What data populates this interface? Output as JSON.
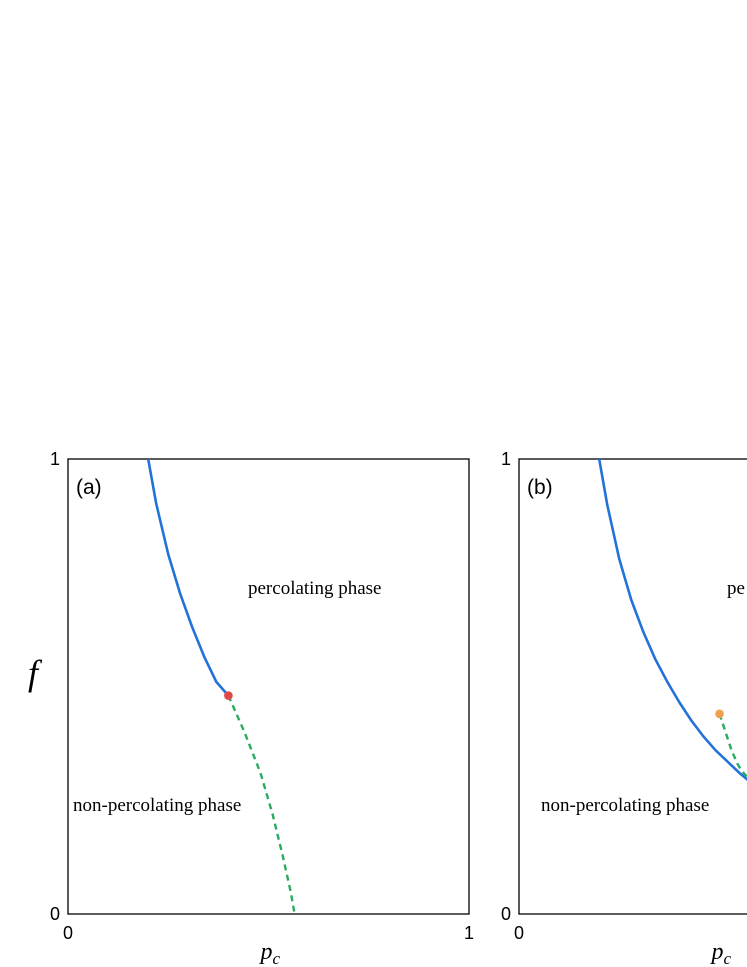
{
  "chart_data": [
    {
      "type": "line",
      "panel_label": "(a)",
      "xlabel_var": "p",
      "xlabel_sub": "c",
      "ylabel": "f",
      "xlim": [
        0,
        1
      ],
      "ylim": [
        0,
        1
      ],
      "x_ticks": [
        "0",
        "1"
      ],
      "y_ticks": [
        "0",
        "1"
      ],
      "region_labels": [
        "percolating phase",
        "non-percolating phase"
      ],
      "grid": false,
      "series": [
        {
          "style": "solid",
          "color": "#2372d9",
          "x": [
            0.2,
            0.22,
            0.25,
            0.28,
            0.31,
            0.34,
            0.37,
            0.4
          ],
          "y": [
            1.0,
            0.902,
            0.79,
            0.703,
            0.63,
            0.565,
            0.51,
            0.48
          ]
        },
        {
          "style": "dashed",
          "color": "#2aaa60",
          "x": [
            0.4,
            0.44,
            0.48,
            0.51,
            0.535,
            0.555,
            0.565
          ],
          "y": [
            0.48,
            0.4,
            0.31,
            0.22,
            0.13,
            0.05,
            0.0
          ]
        }
      ],
      "point": {
        "x": 0.4,
        "y": 0.48,
        "color": "#e04848"
      }
    },
    {
      "type": "line",
      "panel_label": "(b)",
      "xlabel_var": "p",
      "xlabel_sub": "c",
      "ylabel": "",
      "xlim": [
        0,
        1
      ],
      "ylim": [
        0,
        1
      ],
      "x_ticks": [
        "0",
        ""
      ],
      "y_ticks": [
        "0",
        "1"
      ],
      "region_labels": [
        "pe",
        "non-percolating phase"
      ],
      "grid": false,
      "series": [
        {
          "style": "solid",
          "color": "#2372d9",
          "x": [
            0.2,
            0.22,
            0.25,
            0.28,
            0.31,
            0.34,
            0.37,
            0.4,
            0.43,
            0.46,
            0.49,
            0.52,
            0.55,
            0.57
          ],
          "y": [
            1.0,
            0.9,
            0.78,
            0.69,
            0.62,
            0.56,
            0.51,
            0.465,
            0.425,
            0.39,
            0.36,
            0.335,
            0.31,
            0.295
          ]
        },
        {
          "style": "dashed",
          "color": "#2aaa60",
          "x": [
            0.5,
            0.515,
            0.53,
            0.545,
            0.555,
            0.57
          ],
          "y": [
            0.44,
            0.4,
            0.36,
            0.33,
            0.315,
            0.3
          ]
        }
      ],
      "point": {
        "x": 0.5,
        "y": 0.44,
        "color": "#f0a050"
      }
    }
  ]
}
